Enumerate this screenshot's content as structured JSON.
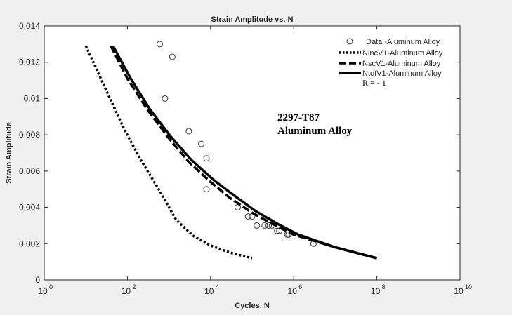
{
  "chart_data": {
    "type": "line",
    "title": "Strain Amplitude vs. N",
    "xlabel": "Cycles, N",
    "ylabel": "Strain Amplitude",
    "xscale": "log",
    "xlim": [
      1,
      10000000000
    ],
    "ylim": [
      0,
      0.014
    ],
    "x_ticks": [
      {
        "base": "10",
        "exp": "0",
        "value": 1
      },
      {
        "base": "10",
        "exp": "2",
        "value": 100
      },
      {
        "base": "10",
        "exp": "4",
        "value": 10000
      },
      {
        "base": "10",
        "exp": "6",
        "value": 1000000
      },
      {
        "base": "10",
        "exp": "8",
        "value": 100000000
      },
      {
        "base": "10",
        "exp": "10",
        "value": 10000000000
      }
    ],
    "y_ticks": [
      "0",
      "0.002",
      "0.004",
      "0.006",
      "0.008",
      "0.01",
      "0.012",
      "0.014"
    ],
    "grid": false,
    "legend_position": "top-right",
    "annotations": [
      "2297-T87",
      "Aluminum Alloy"
    ],
    "legend_note": "R = - 1",
    "series": [
      {
        "name": "Data -Aluminum Alloy",
        "style": "open-circle",
        "points": [
          [
            600,
            0.013
          ],
          [
            1200,
            0.0123
          ],
          [
            800,
            0.01
          ],
          [
            3000,
            0.0082
          ],
          [
            6000,
            0.0075
          ],
          [
            8000,
            0.0067
          ],
          [
            8000,
            0.005
          ],
          [
            45000,
            0.004
          ],
          [
            80000,
            0.0035
          ],
          [
            100000,
            0.0035
          ],
          [
            130000,
            0.003
          ],
          [
            200000,
            0.003
          ],
          [
            250000,
            0.003
          ],
          [
            300000,
            0.003
          ],
          [
            400000,
            0.0027
          ],
          [
            450000,
            0.0027
          ],
          [
            700000,
            0.0025
          ],
          [
            750000,
            0.0025
          ],
          [
            3000000,
            0.002
          ]
        ]
      },
      {
        "name": "NincV1-Aluminum Alloy",
        "style": "dotted",
        "points": [
          [
            10,
            0.0129
          ],
          [
            20,
            0.0114
          ],
          [
            40,
            0.0099
          ],
          [
            80,
            0.0084
          ],
          [
            200,
            0.0067
          ],
          [
            600,
            0.0049
          ],
          [
            1500,
            0.0033
          ],
          [
            4000,
            0.0024
          ],
          [
            10000,
            0.0019
          ],
          [
            30000,
            0.0015
          ],
          [
            100000,
            0.0012
          ]
        ]
      },
      {
        "name": "NscV1-Aluminum Alloy",
        "style": "dashed",
        "points": [
          [
            40,
            0.0129
          ],
          [
            100,
            0.0111
          ],
          [
            300,
            0.0094
          ],
          [
            1000,
            0.0078
          ],
          [
            3000,
            0.0065
          ],
          [
            10000,
            0.0054
          ],
          [
            30000,
            0.0045
          ],
          [
            100000,
            0.0037
          ],
          [
            300000,
            0.0031
          ],
          [
            1000000,
            0.0025
          ],
          [
            10000000,
            0.0018
          ],
          [
            100000000,
            0.0012
          ]
        ]
      },
      {
        "name": "NtotV1-Aluminum Alloy",
        "style": "solid",
        "points": [
          [
            45,
            0.0129
          ],
          [
            120,
            0.0111
          ],
          [
            350,
            0.0094
          ],
          [
            1100,
            0.0079
          ],
          [
            3500,
            0.0066
          ],
          [
            12000,
            0.0055
          ],
          [
            40000,
            0.0046
          ],
          [
            120000,
            0.0038
          ],
          [
            400000,
            0.0031
          ],
          [
            1300000,
            0.0025
          ],
          [
            10000000,
            0.0018
          ],
          [
            100000000,
            0.0012
          ]
        ]
      }
    ]
  }
}
